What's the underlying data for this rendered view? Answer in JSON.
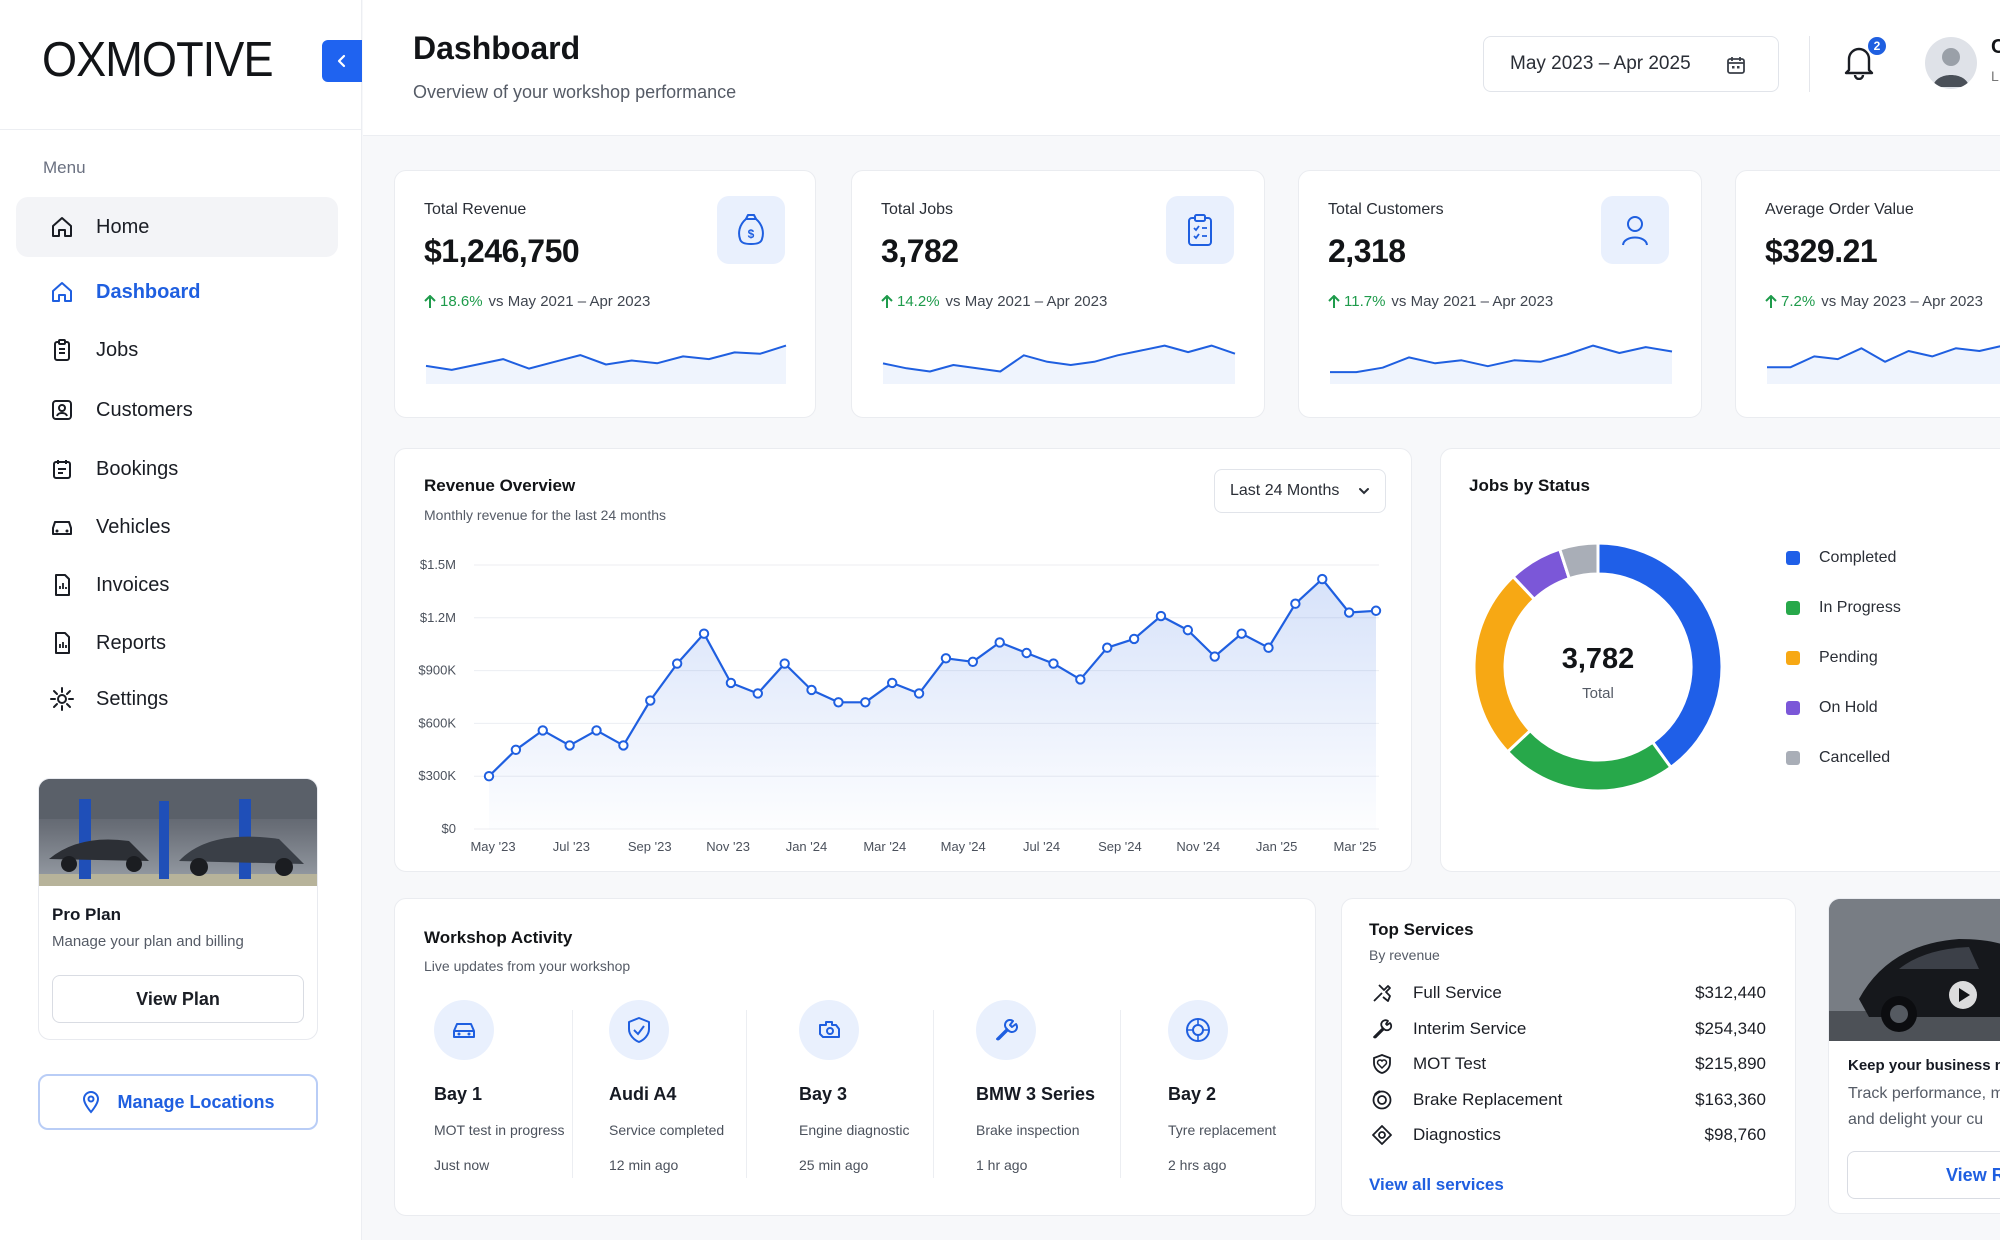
{
  "brand": {
    "logo": "OXMOTIVE"
  },
  "sidebar": {
    "menu_label": "Menu",
    "items": [
      {
        "label": "Home",
        "icon": "home-icon"
      },
      {
        "label": "Dashboard",
        "icon": "home-icon"
      },
      {
        "label": "Jobs",
        "icon": "clipboard-icon"
      },
      {
        "label": "Customers",
        "icon": "customers-icon"
      },
      {
        "label": "Bookings",
        "icon": "calendar-icon"
      },
      {
        "label": "Vehicles",
        "icon": "car-icon"
      },
      {
        "label": "Invoices",
        "icon": "invoice-icon"
      },
      {
        "label": "Reports",
        "icon": "report-icon"
      },
      {
        "label": "Settings",
        "icon": "gear-icon"
      }
    ],
    "active_item": "Dashboard",
    "promo": {
      "title": "Pro Plan",
      "subtitle": "Manage your plan and billing",
      "button": "View Plan"
    },
    "locations_button": "Manage Locations"
  },
  "header": {
    "title": "Dashboard",
    "subtitle": "Overview of your workshop performance",
    "date_range": "May 2023 – Apr 2025",
    "notification_count": "2",
    "user_name": "C",
    "user_role": "L"
  },
  "stats": [
    {
      "label": "Total Revenue",
      "value": "$1,246,750",
      "change": "18.6%",
      "compare": "vs May 2021 – Apr 2023",
      "icon": "money-bag-icon",
      "spark": [
        0.45,
        0.3,
        0.5,
        0.7,
        0.35,
        0.6,
        0.85,
        0.5,
        0.65,
        0.55,
        0.8,
        0.7,
        0.95,
        0.9,
        1.2
      ]
    },
    {
      "label": "Total Jobs",
      "value": "3,782",
      "change": "14.2%",
      "compare": "vs May 2021 – Apr 2023",
      "icon": "clipboard-icon",
      "spark": [
        0.45,
        0.3,
        0.2,
        0.4,
        0.3,
        0.2,
        0.7,
        0.5,
        0.4,
        0.5,
        0.7,
        0.85,
        1.0,
        0.8,
        1.0,
        0.75
      ]
    },
    {
      "label": "Total Customers",
      "value": "2,318",
      "change": "11.7%",
      "compare": "vs May 2021 – Apr 2023",
      "icon": "user-icon",
      "spark": [
        0.2,
        0.2,
        0.35,
        0.7,
        0.5,
        0.6,
        0.4,
        0.6,
        0.55,
        0.8,
        1.1,
        0.85,
        1.05,
        0.9
      ]
    },
    {
      "label": "Average Order Value",
      "value": "$329.21",
      "change": "7.2%",
      "compare": "vs May 2023 – Apr 2023",
      "icon": "tag-icon",
      "spark": [
        0.2,
        0.2,
        0.4,
        0.35,
        0.55,
        0.3,
        0.5,
        0.4,
        0.55,
        0.5,
        0.6
      ]
    }
  ],
  "revenue_chart": {
    "title": "Revenue Overview",
    "subtitle": "Monthly revenue for the last 24 months",
    "range_select": "Last 24 Months"
  },
  "chart_data": {
    "type": "area",
    "title": "Revenue Overview",
    "subtitle": "Monthly revenue for the last 24 months",
    "y_ticks": [
      "$0",
      "$300K",
      "$600K",
      "$900K",
      "$1.2M",
      "$1.5M"
    ],
    "ylim": [
      0,
      1500000
    ],
    "x_tick_labels": [
      "May '23",
      "Jul '23",
      "Sep '23",
      "Nov '23",
      "Jan '24",
      "Mar '24",
      "May '24",
      "Jul '24",
      "Sep '24",
      "Nov '24",
      "Jan '25",
      "Mar '25"
    ],
    "grid": true,
    "series": [
      {
        "values": [
          300000,
          450000,
          560000,
          475000,
          560000,
          475000,
          730000,
          940000,
          1110000,
          830000,
          770000,
          940000,
          790000,
          720000,
          720000,
          830000,
          770000,
          970000,
          950000,
          1060000,
          1000000,
          940000,
          850000,
          1030000,
          1080000,
          1210000,
          1130000,
          980000,
          1110000,
          1030000,
          1280000,
          1420000,
          1230000,
          1240000
        ]
      }
    ]
  },
  "jobs_by_status": {
    "title": "Jobs by Status",
    "total": "3,782",
    "total_label": "Total",
    "segments": [
      {
        "label": "Completed",
        "value": 1513,
        "color": "#1f5fe8"
      },
      {
        "label": "In Progress",
        "value": 870,
        "color": "#27a84a"
      },
      {
        "label": "Pending",
        "value": 945,
        "color": "#f7a814"
      },
      {
        "label": "On Hold",
        "value": 265,
        "color": "#7b57d8"
      },
      {
        "label": "Cancelled",
        "value": 189,
        "color": "#a9aeb7"
      }
    ]
  },
  "activity": {
    "title": "Workshop Activity",
    "subtitle": "Live updates from your workshop",
    "items": [
      {
        "title": "Bay 1",
        "desc": "MOT test in progress",
        "time": "Just now",
        "icon": "car-icon"
      },
      {
        "title": "Audi A4",
        "desc": "Service completed",
        "time": "12 min ago",
        "icon": "check-shield-icon"
      },
      {
        "title": "Bay 3",
        "desc": "Engine diagnostic",
        "time": "25 min ago",
        "icon": "engine-icon"
      },
      {
        "title": "BMW 3 Series",
        "desc": "Brake inspection",
        "time": "1 hr ago",
        "icon": "wrench-icon"
      },
      {
        "title": "Bay 2",
        "desc": "Tyre replacement",
        "time": "2 hrs ago",
        "icon": "tyre-icon"
      }
    ]
  },
  "services": {
    "title": "Top Services",
    "subtitle": "By revenue",
    "items": [
      {
        "name": "Full Service",
        "amount": "$312,440",
        "icon": "tools-icon"
      },
      {
        "name": "Interim Service",
        "amount": "$254,340",
        "icon": "wrench-icon"
      },
      {
        "name": "MOT Test",
        "amount": "$215,890",
        "icon": "shield-heart-icon"
      },
      {
        "name": "Brake Replacement",
        "amount": "$163,360",
        "icon": "brake-icon"
      },
      {
        "name": "Diagnostics",
        "amount": "$98,760",
        "icon": "diagnostics-icon"
      }
    ],
    "view_all": "View all services"
  },
  "promo_right": {
    "title": "Keep your business m",
    "line1": "Track performance, m",
    "line2": "and delight your cu",
    "button": "View R"
  },
  "colors": {
    "accent": "#1f5fe0",
    "positive": "#1e9b4b"
  }
}
